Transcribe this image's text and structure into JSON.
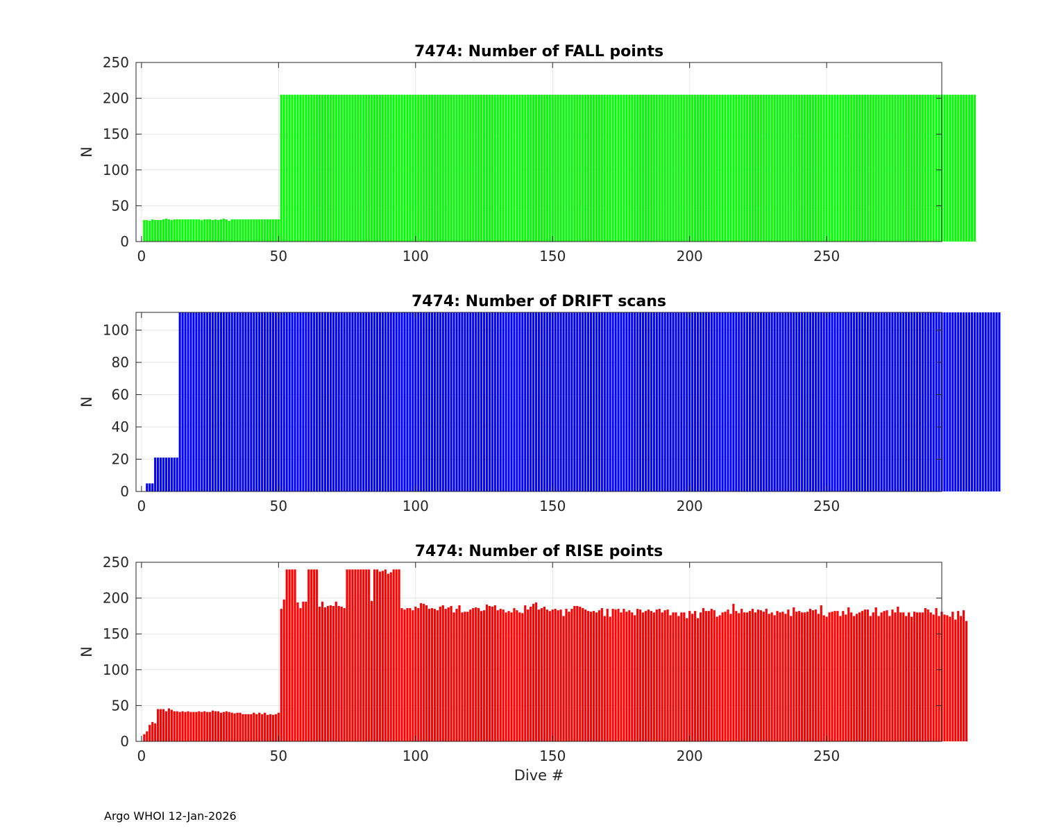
{
  "chart_data": [
    {
      "type": "bar",
      "title": "7474: Number of FALL points",
      "xlabel": "",
      "ylabel": "N",
      "xlim": [
        -2,
        292
      ],
      "ylim": [
        0,
        250
      ],
      "xticks": [
        0,
        50,
        100,
        150,
        200,
        250
      ],
      "yticks": [
        0,
        50,
        100,
        150,
        200,
        250
      ],
      "grid": true,
      "color": "#00ff00",
      "x_start": 1,
      "values": [
        30,
        30,
        29,
        31,
        30,
        30,
        30,
        31,
        32,
        31,
        30,
        31,
        31,
        31,
        31,
        31,
        31,
        31,
        31,
        31,
        31,
        30,
        31,
        31,
        31,
        30,
        31,
        30,
        31,
        32,
        31,
        29,
        31,
        31,
        31,
        31,
        31,
        31,
        31,
        31,
        31,
        31,
        31,
        31,
        31,
        31,
        31,
        31,
        31,
        31,
        205,
        205,
        205,
        205,
        205,
        205,
        205,
        205,
        205,
        205,
        205,
        205,
        205,
        205,
        205,
        205,
        205,
        205,
        205,
        205,
        205,
        205,
        205,
        205,
        205,
        205,
        205,
        205,
        205,
        205,
        205,
        205,
        205,
        205,
        205,
        205,
        205,
        205,
        205,
        205,
        205,
        205,
        205,
        205,
        205,
        205,
        205,
        205,
        205,
        205,
        205,
        205,
        205,
        205,
        205,
        205,
        205,
        205,
        205,
        205,
        205,
        205,
        205,
        205,
        205,
        205,
        205,
        205,
        205,
        205,
        205,
        205,
        205,
        205,
        205,
        205,
        205,
        205,
        205,
        205,
        205,
        205,
        205,
        205,
        205,
        205,
        205,
        205,
        205,
        205,
        205,
        205,
        205,
        205,
        205,
        205,
        205,
        205,
        205,
        205,
        205,
        205,
        205,
        205,
        205,
        205,
        205,
        205,
        205,
        205,
        205,
        205,
        205,
        205,
        205,
        205,
        205,
        205,
        205,
        205,
        205,
        205,
        205,
        205,
        205,
        205,
        205,
        205,
        205,
        205,
        205,
        205,
        205,
        205,
        205,
        205,
        205,
        205,
        205,
        205,
        205,
        205,
        205,
        205,
        205,
        205,
        205,
        205,
        205,
        205,
        205,
        205,
        205,
        205,
        205,
        205,
        205,
        205,
        205,
        205,
        205,
        205,
        205,
        205,
        205,
        205,
        205,
        205,
        205,
        205,
        205,
        205,
        205,
        205,
        205,
        205,
        205,
        205,
        205,
        205,
        205,
        205,
        205,
        205,
        205,
        205,
        205,
        205,
        205,
        205,
        205,
        205,
        205,
        205,
        205,
        205,
        205,
        205,
        205,
        205,
        205,
        205,
        205,
        205,
        205,
        205,
        205,
        205,
        205,
        205,
        205,
        205,
        205,
        205,
        205,
        205,
        205,
        205,
        205,
        205,
        205,
        205,
        205,
        205,
        205,
        205,
        205,
        205,
        205,
        205,
        205,
        205,
        205,
        205,
        205,
        205,
        205,
        205,
        205,
        205,
        205,
        205,
        205,
        205,
        205,
        205,
        205,
        205,
        205,
        205,
        205,
        205,
        205,
        205
      ]
    },
    {
      "type": "bar",
      "title": "7474: Number of DRIFT scans",
      "xlabel": "",
      "ylabel": "N",
      "xlim": [
        -2,
        292
      ],
      "ylim": [
        0,
        111
      ],
      "xticks": [
        0,
        50,
        100,
        150,
        200,
        250
      ],
      "yticks": [
        0,
        20,
        40,
        60,
        80,
        100
      ],
      "grid": true,
      "color": "#0000ff",
      "x_start": 1,
      "values": [
        0,
        5,
        5,
        5,
        21,
        21,
        21,
        21,
        21,
        21,
        21,
        21,
        21,
        111,
        111,
        111,
        111,
        111,
        111,
        111,
        111,
        111,
        111,
        111,
        111,
        111,
        111,
        111,
        111,
        111,
        111,
        111,
        111,
        111,
        111,
        111,
        111,
        111,
        111,
        111,
        111,
        111,
        111,
        111,
        111,
        111,
        111,
        111,
        111,
        111,
        111,
        111,
        111,
        111,
        111,
        111,
        111,
        111,
        111,
        111,
        111,
        111,
        111,
        111,
        111,
        111,
        111,
        111,
        111,
        111,
        111,
        111,
        111,
        111,
        111,
        111,
        111,
        111,
        111,
        111,
        111,
        111,
        111,
        111,
        111,
        111,
        111,
        111,
        111,
        111,
        111,
        111,
        111,
        111,
        111,
        111,
        111,
        111,
        111,
        111,
        111,
        111,
        111,
        111,
        111,
        111,
        111,
        111,
        111,
        111,
        111,
        111,
        111,
        111,
        111,
        111,
        111,
        111,
        111,
        111,
        111,
        111,
        111,
        111,
        111,
        111,
        111,
        111,
        111,
        111,
        111,
        111,
        111,
        111,
        111,
        111,
        111,
        111,
        111,
        111,
        111,
        111,
        111,
        111,
        111,
        111,
        111,
        111,
        111,
        111,
        111,
        111,
        111,
        111,
        111,
        111,
        111,
        111,
        111,
        111,
        111,
        111,
        111,
        111,
        111,
        111,
        111,
        111,
        111,
        111,
        111,
        111,
        111,
        111,
        111,
        111,
        111,
        111,
        111,
        111,
        111,
        111,
        111,
        111,
        111,
        111,
        111,
        111,
        111,
        111,
        111,
        111,
        111,
        111,
        111,
        111,
        111,
        111,
        111,
        111,
        111,
        111,
        111,
        111,
        111,
        111,
        111,
        111,
        111,
        111,
        111,
        111,
        111,
        111,
        111,
        111,
        111,
        111,
        111,
        111,
        111,
        111,
        111,
        111,
        111,
        111,
        111,
        111,
        111,
        111,
        111,
        111,
        111,
        111,
        111,
        111,
        111,
        111,
        111,
        111,
        111,
        111,
        111,
        111,
        111,
        111,
        111,
        111,
        111,
        111,
        111,
        111,
        111,
        111,
        111,
        111,
        111,
        111,
        111,
        111,
        111,
        111,
        111,
        111,
        111,
        111,
        111,
        111,
        111,
        111,
        111,
        111,
        111,
        111,
        111,
        111,
        111,
        111,
        111,
        111,
        111,
        111,
        111,
        111,
        111,
        111,
        111,
        111,
        111,
        111,
        111,
        111,
        111,
        111,
        111,
        111,
        111,
        111,
        111,
        111,
        111,
        111,
        111,
        111,
        111,
        111,
        111,
        111,
        111,
        111,
        111,
        111,
        111
      ]
    },
    {
      "type": "bar",
      "title": "7474: Number of RISE points",
      "xlabel": "Dive #",
      "ylabel": "N",
      "xlim": [
        -2,
        292
      ],
      "ylim": [
        0,
        250
      ],
      "xticks": [
        0,
        50,
        100,
        150,
        200,
        250
      ],
      "yticks": [
        0,
        50,
        100,
        150,
        200,
        250
      ],
      "grid": true,
      "color": "#ff0000",
      "x_start": 1,
      "values": [
        10,
        14,
        23,
        27,
        25,
        45,
        45,
        45,
        42,
        46,
        44,
        42,
        42,
        41,
        42,
        41,
        42,
        41,
        41,
        41,
        42,
        41,
        42,
        41,
        41,
        43,
        42,
        42,
        40,
        41,
        42,
        41,
        40,
        39,
        40,
        40,
        38,
        38,
        38,
        38,
        40,
        38,
        40,
        38,
        40,
        37,
        38,
        37,
        38,
        40,
        185,
        198,
        240,
        240,
        240,
        240,
        194,
        186,
        195,
        195,
        240,
        240,
        240,
        240,
        188,
        195,
        187,
        189,
        190,
        189,
        195,
        189,
        188,
        186,
        240,
        240,
        240,
        240,
        240,
        240,
        240,
        240,
        240,
        196,
        240,
        240,
        237,
        238,
        240,
        234,
        236,
        240,
        240,
        240,
        186,
        184,
        186,
        186,
        183,
        188,
        186,
        193,
        192,
        190,
        185,
        186,
        185,
        183,
        188,
        190,
        185,
        187,
        189,
        180,
        185,
        190,
        180,
        181,
        181,
        184,
        186,
        187,
        186,
        182,
        183,
        191,
        189,
        188,
        190,
        183,
        185,
        184,
        180,
        182,
        180,
        186,
        183,
        180,
        179,
        190,
        184,
        188,
        192,
        194,
        184,
        186,
        188,
        184,
        182,
        184,
        185,
        183,
        184,
        175,
        185,
        181,
        185,
        189,
        189,
        188,
        186,
        184,
        182,
        181,
        182,
        180,
        183,
        186,
        175,
        185,
        174,
        185,
        184,
        185,
        180,
        185,
        181,
        183,
        180,
        176,
        185,
        184,
        180,
        182,
        184,
        182,
        180,
        184,
        185,
        180,
        183,
        184,
        176,
        180,
        180,
        175,
        180,
        180,
        172,
        182,
        178,
        182,
        172,
        180,
        186,
        182,
        182,
        185,
        183,
        174,
        176,
        180,
        181,
        184,
        178,
        192,
        182,
        179,
        185,
        180,
        180,
        182,
        185,
        180,
        184,
        183,
        181,
        185,
        178,
        180,
        176,
        182,
        180,
        181,
        178,
        184,
        175,
        187,
        181,
        182,
        180,
        180,
        181,
        185,
        183,
        184,
        178,
        190,
        176,
        174,
        180,
        181,
        182,
        182,
        175,
        182,
        177,
        187,
        180,
        175,
        178,
        180,
        182,
        184,
        184,
        175,
        180,
        187,
        175,
        180,
        182,
        183,
        175,
        184,
        180,
        188,
        180,
        180,
        175,
        180,
        174,
        181,
        180,
        180,
        180,
        186,
        184,
        180,
        177,
        186,
        175,
        181,
        177,
        176,
        174,
        181,
        170,
        182,
        175,
        183,
        168
      ]
    }
  ],
  "footer": {
    "text": "Argo WHOI 12-Jan-2026"
  }
}
